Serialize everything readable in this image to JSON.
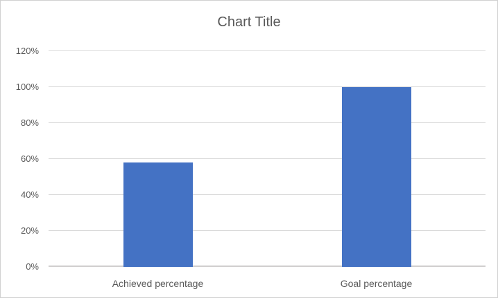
{
  "chart_data": {
    "type": "bar",
    "title": "Chart Title",
    "categories": [
      "Achieved percentage",
      "Goal percentage"
    ],
    "values": [
      58,
      100
    ],
    "xlabel": "",
    "ylabel": "",
    "ylim": [
      0,
      120
    ],
    "ytick_step": 20,
    "ytick_labels": [
      "0%",
      "20%",
      "40%",
      "60%",
      "80%",
      "100%",
      "120%"
    ],
    "grid": "horizontal-only",
    "legend": "none",
    "colors": {
      "bar": "#4472C4",
      "gridline": "#d9d9d9",
      "axis_line": "#d0cece",
      "text": "#595959",
      "border": "#d0d0d0"
    }
  }
}
